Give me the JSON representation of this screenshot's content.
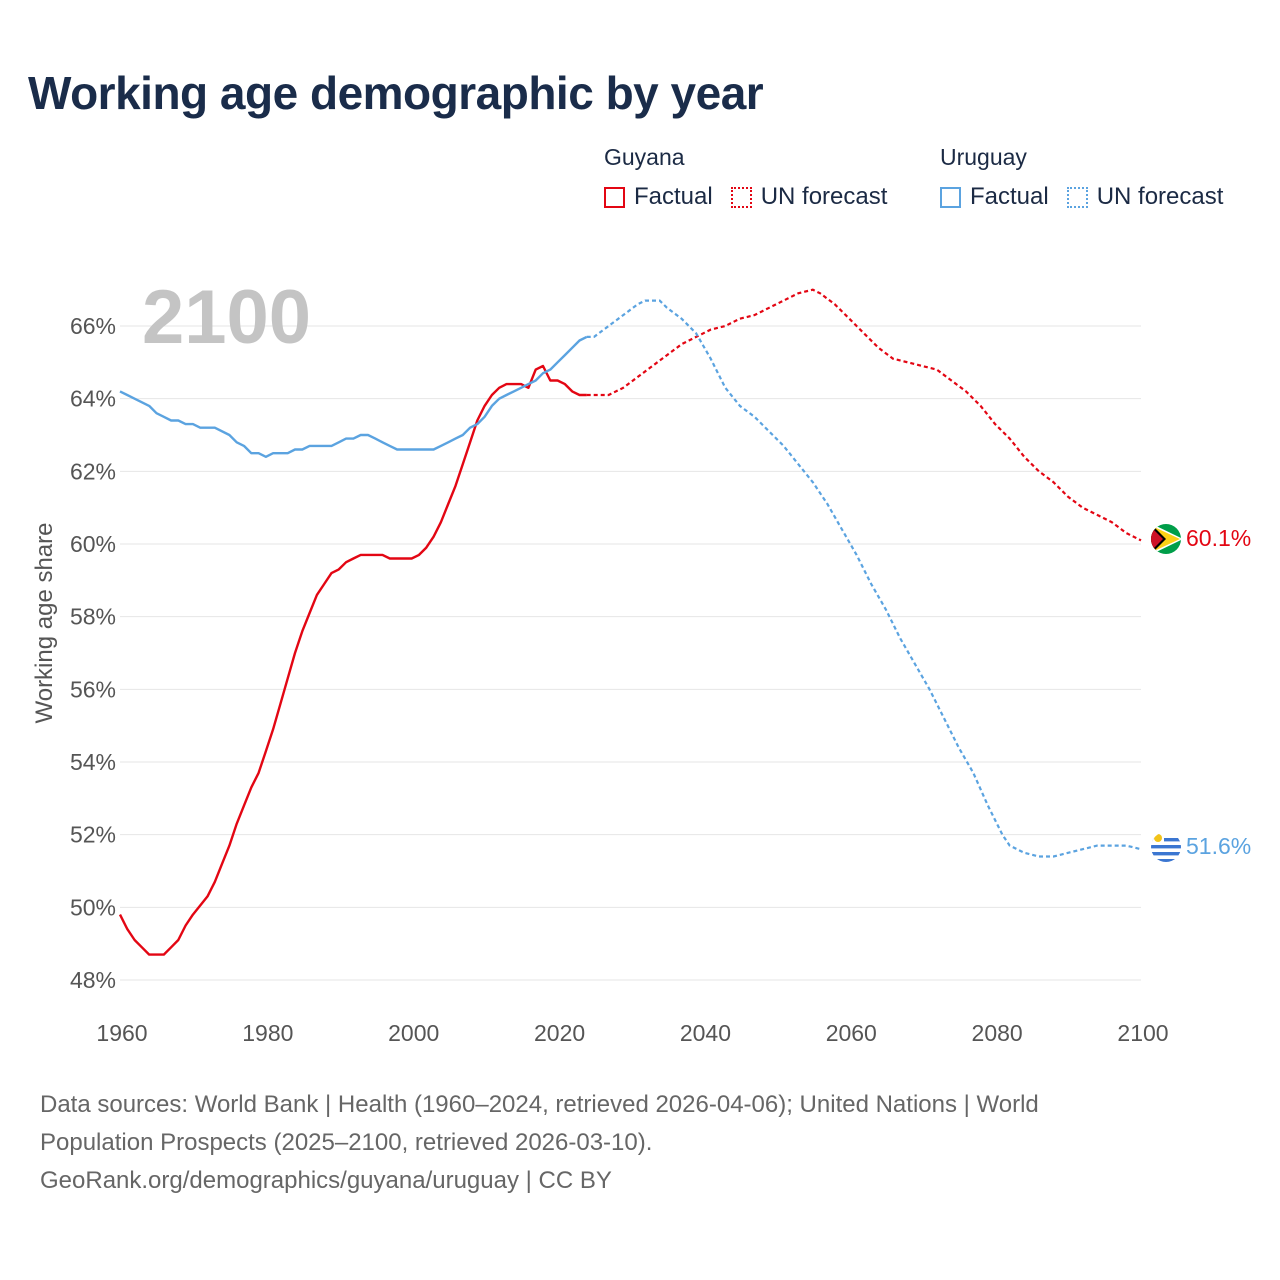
{
  "title": "Working age demographic by year",
  "legend": {
    "groups": [
      {
        "country": "Guyana",
        "color": "#e30613",
        "items": [
          {
            "label": "Factual",
            "style": "solid"
          },
          {
            "label": "UN forecast",
            "style": "dotted"
          }
        ]
      },
      {
        "country": "Uruguay",
        "color": "#5ba3e0",
        "items": [
          {
            "label": "Factual",
            "style": "solid"
          },
          {
            "label": "UN forecast",
            "style": "dotted"
          }
        ]
      }
    ]
  },
  "chart_data": {
    "type": "line",
    "title": "Working age demographic by year",
    "xlabel": "",
    "ylabel": "Working age share",
    "year_overlay": "2100",
    "xlim": [
      1960,
      2100
    ],
    "ylim": [
      48,
      67
    ],
    "x_ticks": [
      "1960",
      "1980",
      "2000",
      "2020",
      "2040",
      "2060",
      "2080",
      "2100"
    ],
    "y_ticks": [
      {
        "value": 48,
        "label": "48%"
      },
      {
        "value": 50,
        "label": "50%"
      },
      {
        "value": 52,
        "label": "52%"
      },
      {
        "value": 54,
        "label": "54%"
      },
      {
        "value": 56,
        "label": "56%"
      },
      {
        "value": 58,
        "label": "58%"
      },
      {
        "value": 60,
        "label": "60%"
      },
      {
        "value": 62,
        "label": "62%"
      },
      {
        "value": 64,
        "label": "64%"
      },
      {
        "value": 66,
        "label": "66%"
      }
    ],
    "grid": true,
    "series": [
      {
        "name": "Guyana",
        "color": "#e30613",
        "end_label": "60.1%",
        "forecast_start": 2024,
        "points": [
          [
            1960,
            49.8
          ],
          [
            1961,
            49.4
          ],
          [
            1962,
            49.1
          ],
          [
            1963,
            48.9
          ],
          [
            1964,
            48.7
          ],
          [
            1965,
            48.7
          ],
          [
            1966,
            48.7
          ],
          [
            1967,
            48.9
          ],
          [
            1968,
            49.1
          ],
          [
            1969,
            49.5
          ],
          [
            1970,
            49.8
          ],
          [
            1972,
            50.3
          ],
          [
            1973,
            50.7
          ],
          [
            1974,
            51.2
          ],
          [
            1975,
            51.7
          ],
          [
            1976,
            52.3
          ],
          [
            1977,
            52.8
          ],
          [
            1978,
            53.3
          ],
          [
            1979,
            53.7
          ],
          [
            1980,
            54.3
          ],
          [
            1981,
            54.9
          ],
          [
            1982,
            55.6
          ],
          [
            1983,
            56.3
          ],
          [
            1984,
            57.0
          ],
          [
            1985,
            57.6
          ],
          [
            1986,
            58.1
          ],
          [
            1987,
            58.6
          ],
          [
            1988,
            58.9
          ],
          [
            1989,
            59.2
          ],
          [
            1990,
            59.3
          ],
          [
            1991,
            59.5
          ],
          [
            1992,
            59.6
          ],
          [
            1993,
            59.7
          ],
          [
            1994,
            59.7
          ],
          [
            1995,
            59.7
          ],
          [
            1996,
            59.7
          ],
          [
            1997,
            59.6
          ],
          [
            1998,
            59.6
          ],
          [
            1999,
            59.6
          ],
          [
            2000,
            59.6
          ],
          [
            2001,
            59.7
          ],
          [
            2002,
            59.9
          ],
          [
            2003,
            60.2
          ],
          [
            2004,
            60.6
          ],
          [
            2005,
            61.1
          ],
          [
            2006,
            61.6
          ],
          [
            2007,
            62.2
          ],
          [
            2008,
            62.8
          ],
          [
            2009,
            63.4
          ],
          [
            2010,
            63.8
          ],
          [
            2011,
            64.1
          ],
          [
            2012,
            64.3
          ],
          [
            2013,
            64.4
          ],
          [
            2014,
            64.4
          ],
          [
            2015,
            64.4
          ],
          [
            2016,
            64.3
          ],
          [
            2017,
            64.8
          ],
          [
            2018,
            64.9
          ],
          [
            2019,
            64.5
          ],
          [
            2020,
            64.5
          ],
          [
            2021,
            64.4
          ],
          [
            2022,
            64.2
          ],
          [
            2023,
            64.1
          ],
          [
            2024,
            64.1
          ],
          [
            2025,
            64.1
          ],
          [
            2027,
            64.1
          ],
          [
            2029,
            64.3
          ],
          [
            2031,
            64.6
          ],
          [
            2033,
            64.9
          ],
          [
            2035,
            65.2
          ],
          [
            2037,
            65.5
          ],
          [
            2039,
            65.7
          ],
          [
            2041,
            65.9
          ],
          [
            2043,
            66.0
          ],
          [
            2045,
            66.2
          ],
          [
            2047,
            66.3
          ],
          [
            2049,
            66.5
          ],
          [
            2051,
            66.7
          ],
          [
            2053,
            66.9
          ],
          [
            2055,
            67.0
          ],
          [
            2056,
            66.9
          ],
          [
            2058,
            66.6
          ],
          [
            2060,
            66.2
          ],
          [
            2062,
            65.8
          ],
          [
            2064,
            65.4
          ],
          [
            2066,
            65.1
          ],
          [
            2068,
            65.0
          ],
          [
            2070,
            64.9
          ],
          [
            2072,
            64.8
          ],
          [
            2074,
            64.5
          ],
          [
            2076,
            64.2
          ],
          [
            2078,
            63.8
          ],
          [
            2080,
            63.3
          ],
          [
            2082,
            62.9
          ],
          [
            2084,
            62.4
          ],
          [
            2086,
            62.0
          ],
          [
            2088,
            61.7
          ],
          [
            2090,
            61.3
          ],
          [
            2092,
            61.0
          ],
          [
            2094,
            60.8
          ],
          [
            2096,
            60.6
          ],
          [
            2098,
            60.3
          ],
          [
            2100,
            60.1
          ]
        ]
      },
      {
        "name": "Uruguay",
        "color": "#5ba3e0",
        "end_label": "51.6%",
        "forecast_start": 2024,
        "points": [
          [
            1960,
            64.2
          ],
          [
            1962,
            64.0
          ],
          [
            1964,
            63.8
          ],
          [
            1965,
            63.6
          ],
          [
            1966,
            63.5
          ],
          [
            1967,
            63.4
          ],
          [
            1968,
            63.4
          ],
          [
            1969,
            63.3
          ],
          [
            1970,
            63.3
          ],
          [
            1971,
            63.2
          ],
          [
            1973,
            63.2
          ],
          [
            1975,
            63.0
          ],
          [
            1976,
            62.8
          ],
          [
            1977,
            62.7
          ],
          [
            1978,
            62.5
          ],
          [
            1979,
            62.5
          ],
          [
            1980,
            62.4
          ],
          [
            1981,
            62.5
          ],
          [
            1983,
            62.5
          ],
          [
            1984,
            62.6
          ],
          [
            1985,
            62.6
          ],
          [
            1986,
            62.7
          ],
          [
            1987,
            62.7
          ],
          [
            1989,
            62.7
          ],
          [
            1990,
            62.8
          ],
          [
            1991,
            62.9
          ],
          [
            1992,
            62.9
          ],
          [
            1993,
            63.0
          ],
          [
            1994,
            63.0
          ],
          [
            1995,
            62.9
          ],
          [
            1996,
            62.8
          ],
          [
            1997,
            62.7
          ],
          [
            1998,
            62.6
          ],
          [
            2000,
            62.6
          ],
          [
            2002,
            62.6
          ],
          [
            2003,
            62.6
          ],
          [
            2004,
            62.7
          ],
          [
            2005,
            62.8
          ],
          [
            2006,
            62.9
          ],
          [
            2007,
            63.0
          ],
          [
            2008,
            63.2
          ],
          [
            2009,
            63.3
          ],
          [
            2010,
            63.5
          ],
          [
            2011,
            63.8
          ],
          [
            2012,
            64.0
          ],
          [
            2013,
            64.1
          ],
          [
            2014,
            64.2
          ],
          [
            2015,
            64.3
          ],
          [
            2016,
            64.4
          ],
          [
            2017,
            64.5
          ],
          [
            2018,
            64.7
          ],
          [
            2019,
            64.8
          ],
          [
            2020,
            65.0
          ],
          [
            2021,
            65.2
          ],
          [
            2022,
            65.4
          ],
          [
            2023,
            65.6
          ],
          [
            2024,
            65.7
          ],
          [
            2025,
            65.7
          ],
          [
            2027,
            66.0
          ],
          [
            2029,
            66.3
          ],
          [
            2031,
            66.6
          ],
          [
            2032,
            66.7
          ],
          [
            2033,
            66.7
          ],
          [
            2034,
            66.7
          ],
          [
            2035,
            66.5
          ],
          [
            2037,
            66.2
          ],
          [
            2039,
            65.8
          ],
          [
            2041,
            65.1
          ],
          [
            2043,
            64.3
          ],
          [
            2045,
            63.8
          ],
          [
            2047,
            63.5
          ],
          [
            2049,
            63.1
          ],
          [
            2051,
            62.7
          ],
          [
            2053,
            62.2
          ],
          [
            2055,
            61.7
          ],
          [
            2057,
            61.1
          ],
          [
            2059,
            60.4
          ],
          [
            2061,
            59.7
          ],
          [
            2063,
            58.9
          ],
          [
            2065,
            58.2
          ],
          [
            2067,
            57.4
          ],
          [
            2069,
            56.7
          ],
          [
            2071,
            56.0
          ],
          [
            2073,
            55.2
          ],
          [
            2075,
            54.4
          ],
          [
            2077,
            53.7
          ],
          [
            2079,
            52.8
          ],
          [
            2081,
            52.0
          ],
          [
            2082,
            51.7
          ],
          [
            2084,
            51.5
          ],
          [
            2086,
            51.4
          ],
          [
            2088,
            51.4
          ],
          [
            2090,
            51.5
          ],
          [
            2092,
            51.6
          ],
          [
            2094,
            51.7
          ],
          [
            2096,
            51.7
          ],
          [
            2098,
            51.7
          ],
          [
            2100,
            51.6
          ]
        ]
      }
    ]
  },
  "source": {
    "line1": "Data sources: World Bank | Health (1960–2024, retrieved 2026-04-06); United Nations | World",
    "line2": "Population Prospects (2025–2100, retrieved 2026-03-10).",
    "line3": "GeoRank.org/demographics/guyana/uruguay | CC BY"
  }
}
